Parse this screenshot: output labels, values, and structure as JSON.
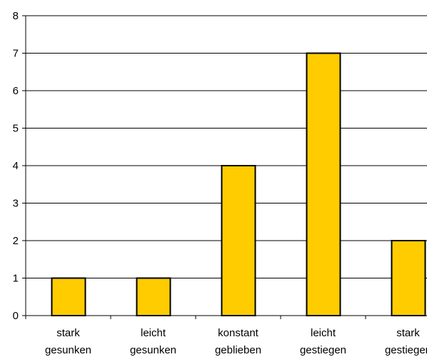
{
  "chart_data": {
    "type": "bar",
    "categories": [
      [
        "stark",
        "gesunken"
      ],
      [
        "leicht",
        "gesunken"
      ],
      [
        "konstant",
        "geblieben"
      ],
      [
        "leicht",
        "gestiegen"
      ],
      [
        "stark",
        "gestiegen"
      ]
    ],
    "values": [
      1,
      1,
      4,
      7,
      2
    ],
    "title": "",
    "xlabel": "",
    "ylabel": "",
    "ylim": [
      0,
      8
    ],
    "yticks": [
      "0",
      "1",
      "2",
      "3",
      "4",
      "5",
      "6",
      "7",
      "8"
    ],
    "grid": true,
    "legend": "none",
    "colors": {
      "bar_fill": "#FFCC00",
      "bar_stroke": "#000000",
      "gridline": "#000000",
      "axis": "#000000"
    }
  }
}
